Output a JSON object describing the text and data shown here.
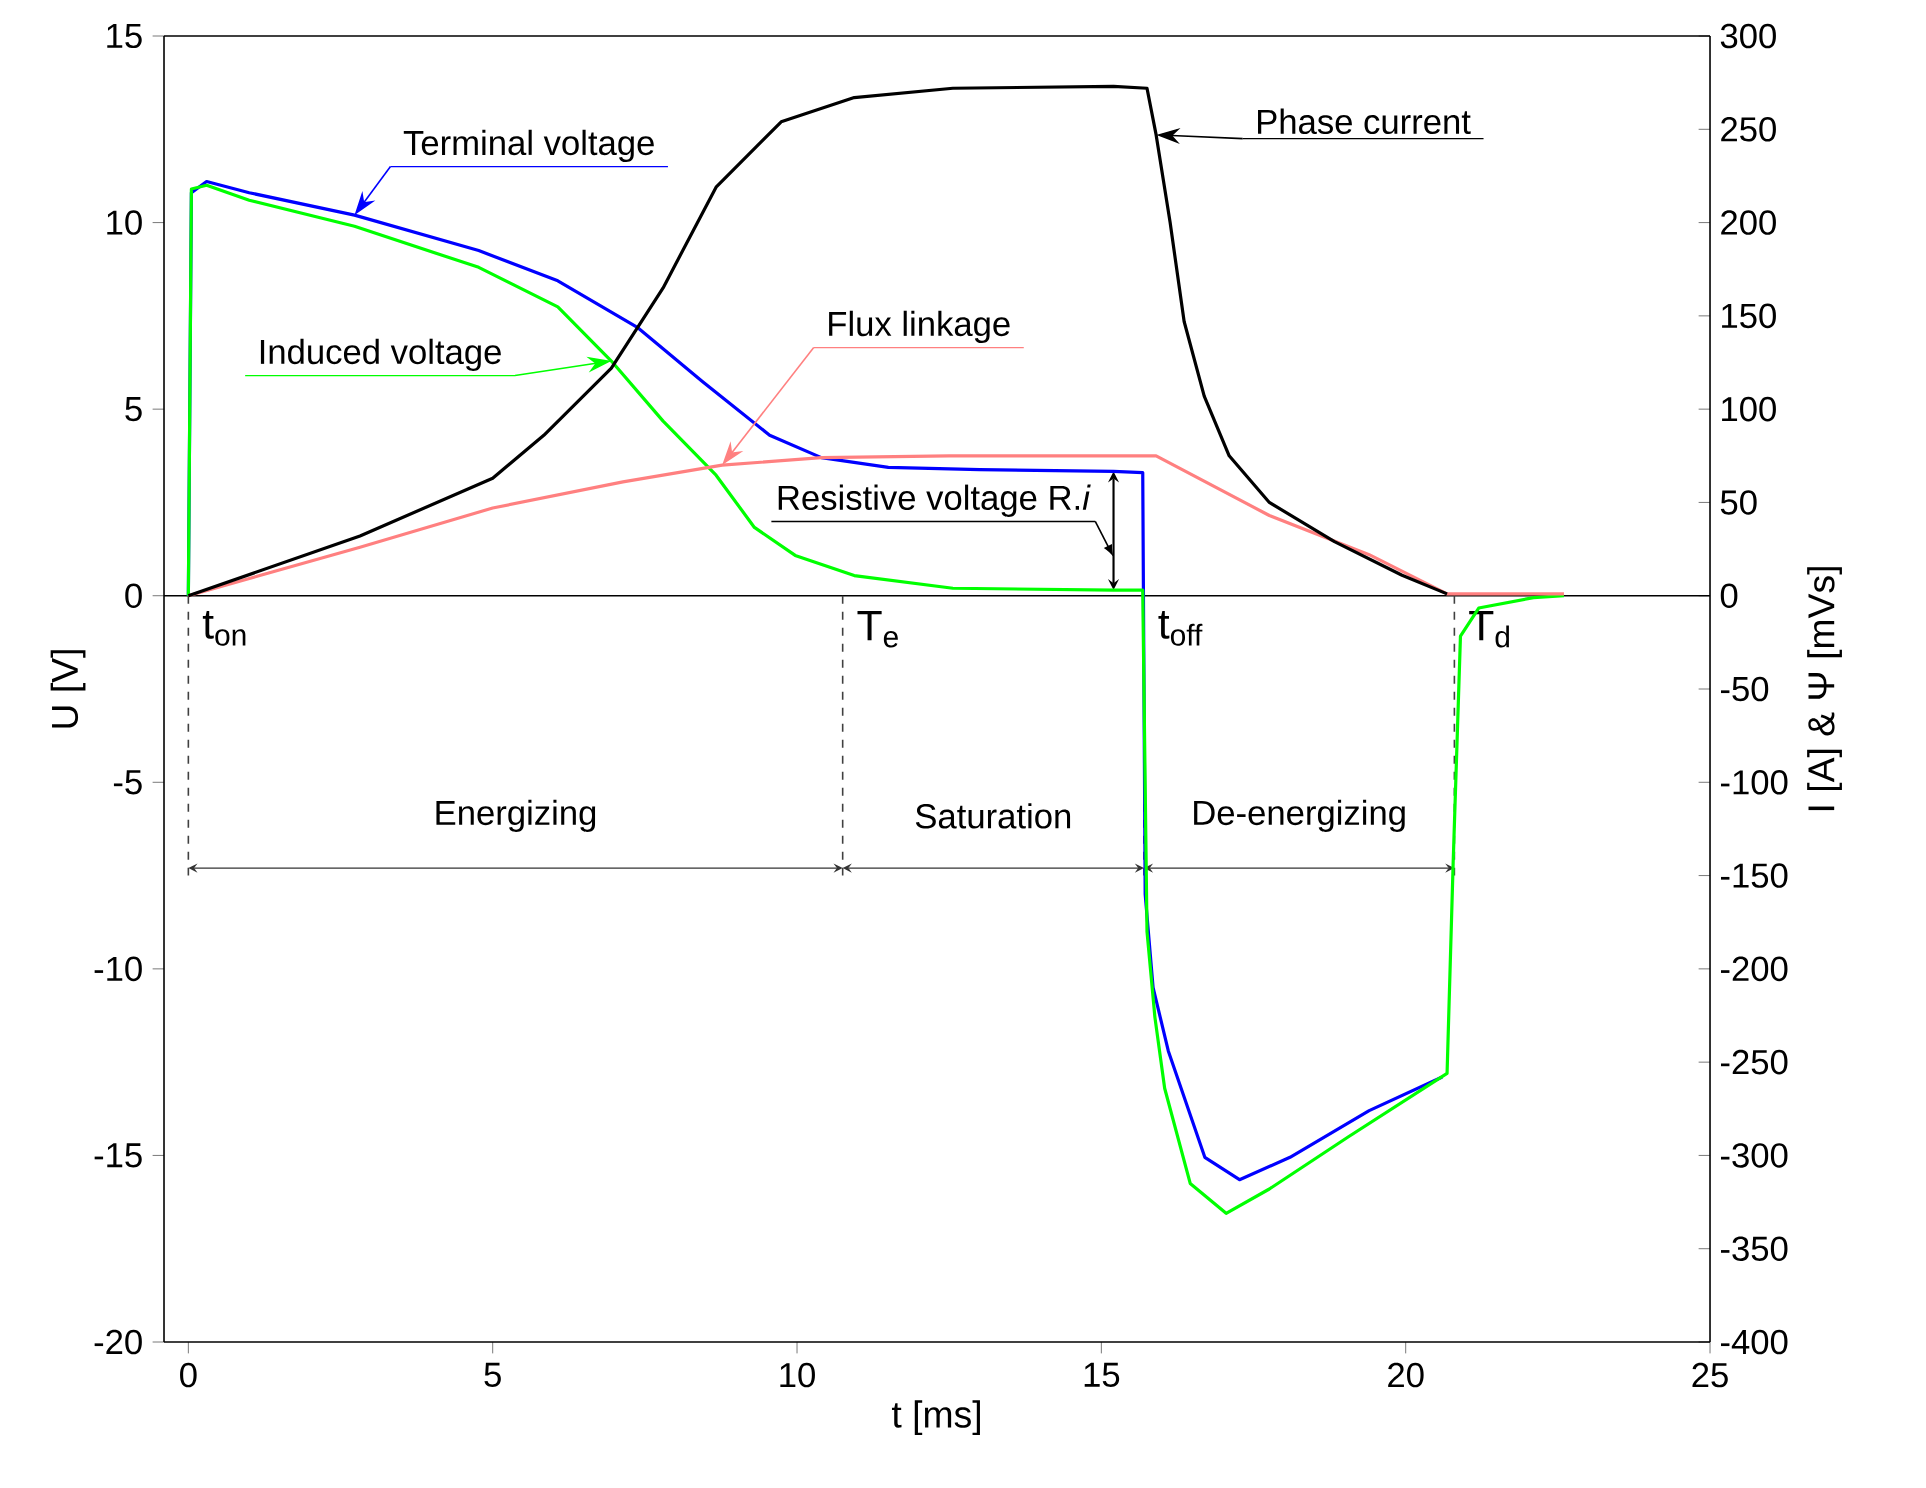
{
  "chart_data": {
    "type": "line",
    "xlabel": "t [ms]",
    "ylabel": "U [V]",
    "y2label": "I [A] & Ψ [mVs]",
    "xlim": [
      -0.4,
      25
    ],
    "xticks": [
      0,
      5,
      10,
      15,
      20,
      25
    ],
    "ylim": [
      -20,
      15
    ],
    "yticks": [
      -20,
      -15,
      -10,
      -5,
      0,
      5,
      10,
      15
    ],
    "y2lim": [
      -400,
      300
    ],
    "y2ticks": [
      -400,
      -350,
      -300,
      -250,
      -200,
      -150,
      -100,
      -50,
      0,
      50,
      100,
      150,
      200,
      250,
      300
    ],
    "marker": "none",
    "line_style": "solid",
    "series": [
      {
        "name": "Terminal voltage",
        "color": "#0000ff",
        "x": [
          0,
          0.05,
          0.3,
          1.0,
          2.73,
          4.77,
          6.07,
          7.37,
          8.44,
          9.55,
          10.4,
          11.5,
          13.0,
          15.2,
          15.68,
          15.72,
          15.85,
          16.1,
          16.7,
          17.27,
          18.1,
          19.4,
          20.6
        ],
        "values": [
          0,
          10.8,
          11.1,
          10.8,
          10.2,
          9.25,
          8.44,
          7.2,
          5.75,
          4.3,
          3.7,
          3.44,
          3.38,
          3.33,
          3.3,
          -8.0,
          -10.5,
          -12.2,
          -15.05,
          -15.65,
          -15.05,
          -13.8,
          -12.9
        ]
      },
      {
        "name": "Induced voltage",
        "color": "#00ff00",
        "x": [
          0,
          0.05,
          0.3,
          1.0,
          2.73,
          4.77,
          6.07,
          6.95,
          7.8,
          8.67,
          9.3,
          9.97,
          10.94,
          12.56,
          15.2,
          15.68,
          15.75,
          15.88,
          16.04,
          16.46,
          17.05,
          17.76,
          19.06,
          20.68,
          20.78,
          20.9,
          21.2,
          22.1,
          22.6
        ],
        "values": [
          0,
          10.9,
          11.0,
          10.6,
          9.9,
          8.8,
          7.74,
          6.29,
          4.68,
          3.23,
          1.83,
          1.08,
          0.54,
          0.2,
          0.15,
          0.15,
          -9.0,
          -11.3,
          -13.2,
          -15.75,
          -16.55,
          -15.9,
          -14.5,
          -12.8,
          -7.15,
          -1.08,
          -0.33,
          -0.05,
          0
        ]
      },
      {
        "name": "Flux linkage",
        "color": "#ff8080",
        "axis": "y2",
        "x": [
          0,
          2.82,
          5.0,
          7.14,
          8.77,
          10.4,
          12.5,
          15.9,
          17.76,
          19.4,
          20.68,
          22.6
        ],
        "values": [
          0,
          26,
          47,
          61,
          70,
          74,
          75,
          75,
          43,
          22,
          1,
          1
        ]
      },
      {
        "name": "Phase current",
        "color": "#000000",
        "axis": "y2",
        "x": [
          0,
          2.82,
          5.0,
          5.84,
          6.95,
          7.8,
          8.67,
          9.74,
          10.94,
          12.56,
          15.2,
          15.75,
          15.9,
          16.13,
          16.36,
          16.69,
          17.1,
          17.76,
          18.83,
          19.94,
          20.68
        ],
        "values": [
          0,
          32,
          63,
          86,
          122,
          165,
          219,
          254,
          267,
          272,
          273,
          272,
          247,
          200,
          147,
          107,
          75,
          50,
          29,
          11,
          1
        ]
      }
    ],
    "ref_lines": [
      {
        "axis": "y",
        "value": 0,
        "color": "#000000",
        "line_style": "solid"
      },
      {
        "axis": "x",
        "value": 0,
        "label": "t$_{on}$",
        "color": "#404040",
        "line_style": "dashed"
      },
      {
        "axis": "x",
        "value": 10.75,
        "label": "T$_{e}$",
        "color": "#404040",
        "line_style": "dashed"
      },
      {
        "axis": "x",
        "value": 15.7,
        "label": "t$_{off}$",
        "color": "#404040",
        "line_style": "dashed"
      },
      {
        "axis": "x",
        "value": 20.8,
        "label": "T$_{d}$",
        "color": "#404040",
        "line_style": "dashed"
      }
    ],
    "annotations": [
      "Energizing",
      "Saturation",
      "De-energizing",
      {
        "text": "Resistive voltage R.*i*",
        "x": 15.2,
        "y": 3.33
      }
    ]
  }
}
